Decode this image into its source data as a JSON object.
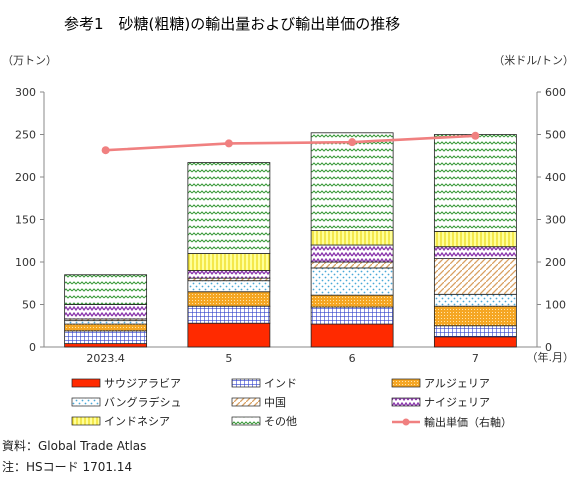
{
  "chart_data": {
    "type": "bar",
    "title": "参考1　砂糖(粗糖)の輸出量および輸出単価の推移",
    "left_unit": "（万トン）",
    "right_unit": "（米ドル/トン）",
    "x_unit": "（年.月）",
    "categories": [
      "2023.4",
      "5",
      "6",
      "7"
    ],
    "ylim": [
      0,
      300
    ],
    "y2lim": [
      0,
      600
    ],
    "yticks": [
      "0",
      "50",
      "100",
      "150",
      "200",
      "250",
      "300"
    ],
    "y2ticks": [
      "0",
      "100",
      "200",
      "300",
      "400",
      "500",
      "600"
    ],
    "series": [
      {
        "name": "サウジアラビア",
        "values": [
          4,
          28,
          27,
          12
        ],
        "color": "#ff2a00",
        "pattern": "solid"
      },
      {
        "name": "インド",
        "values": [
          15,
          20,
          20,
          13
        ],
        "color": "#3344cc",
        "pattern": "grid"
      },
      {
        "name": "アルジェリア",
        "values": [
          8,
          17,
          14,
          23
        ],
        "color": "#f5a623",
        "pattern": "fine"
      },
      {
        "name": "バングラデシュ",
        "values": [
          4,
          13,
          32,
          14
        ],
        "color": "#4aa8d8",
        "pattern": "dots"
      },
      {
        "name": "中国",
        "values": [
          2,
          3,
          7,
          42
        ],
        "color": "#d9a060",
        "pattern": "diag"
      },
      {
        "name": "ナイジェリア",
        "values": [
          17,
          9,
          20,
          14
        ],
        "color": "#8833aa",
        "pattern": "zigzag"
      },
      {
        "name": "インドネシア",
        "values": [
          0,
          20,
          17,
          18
        ],
        "color": "#f6e93a",
        "pattern": "vlines"
      },
      {
        "name": "その他",
        "values": [
          35,
          107,
          115,
          114
        ],
        "color": "#3a9a3a",
        "pattern": "waves"
      }
    ],
    "line": {
      "name": "輸出単価（右軸）",
      "values": [
        463,
        479,
        482,
        497
      ],
      "color": "#f08080"
    },
    "legend_position": "bottom",
    "grid": false
  },
  "footer": {
    "source": "資料：Global Trade Atlas",
    "note": "注：HSコード 1701.14"
  }
}
